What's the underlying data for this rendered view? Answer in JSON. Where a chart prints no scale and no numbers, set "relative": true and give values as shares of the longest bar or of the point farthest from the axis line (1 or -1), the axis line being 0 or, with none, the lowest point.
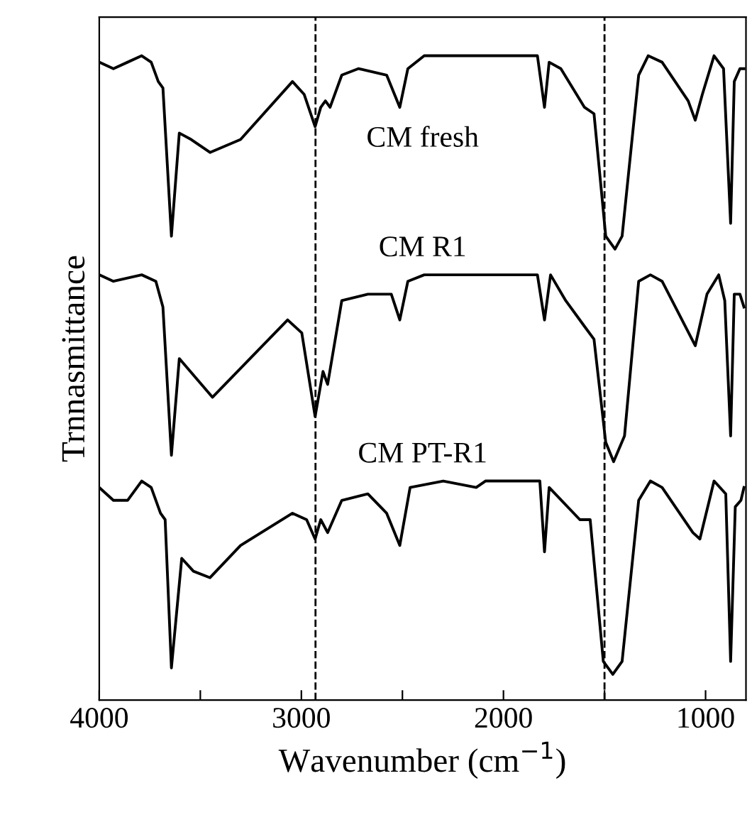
{
  "chart_data": {
    "type": "line",
    "relative": true,
    "xlabel": "Wavenumber (cm$^{−1}$)",
    "ylabel": "Trnnasmittance",
    "xlim": [
      4000,
      800
    ],
    "xticks": [
      4000,
      {
        "value": 3500,
        "label": null
      },
      3000,
      {
        "value": 2500,
        "label": null
      },
      2000,
      {
        "value": 1500,
        "label": null
      },
      1000
    ],
    "tick_labels": "x",
    "grid": false,
    "legend": false,
    "line_style": "solid",
    "marker": "none",
    "ref_lines": [
      {
        "axis": "x",
        "value": 2930,
        "color": "#000000",
        "line_style": "dashed"
      },
      {
        "axis": "x",
        "value": 1500,
        "color": "#000000",
        "line_style": "dashed"
      }
    ],
    "series": [
      {
        "name": "CM fresh",
        "color": "#000000",
        "x": [
          4000,
          3930,
          3860,
          3790,
          3743,
          3708,
          3685,
          3643,
          3604,
          3545,
          3452,
          3301,
          3044,
          2986,
          2932,
          2904,
          2881,
          2858,
          2800,
          2718,
          2578,
          2513,
          2473,
          2392,
          2205,
          1832,
          1797,
          1774,
          1716,
          1599,
          1552,
          1494,
          1448,
          1413,
          1331,
          1284,
          1215,
          1086,
          1051,
          1016,
          958,
          911,
          876,
          858,
          830,
          810
        ],
        "values": [
          0.99,
          0.98,
          0.99,
          1.0,
          0.99,
          0.96,
          0.95,
          0.72,
          0.88,
          0.87,
          0.85,
          0.87,
          0.96,
          0.94,
          0.89,
          0.92,
          0.93,
          0.92,
          0.97,
          0.98,
          0.97,
          0.92,
          0.98,
          1.0,
          1.0,
          1.0,
          0.92,
          0.99,
          0.98,
          0.92,
          0.91,
          0.72,
          0.7,
          0.72,
          0.97,
          1.0,
          0.99,
          0.93,
          0.9,
          0.94,
          1.0,
          0.98,
          0.74,
          0.96,
          0.98,
          0.98
        ]
      },
      {
        "name": "CM R1",
        "color": "#000000",
        "x": [
          4000,
          3930,
          3790,
          3720,
          3685,
          3643,
          3604,
          3440,
          3068,
          2998,
          2932,
          2893,
          2870,
          2800,
          2671,
          2555,
          2513,
          2473,
          2392,
          1832,
          1797,
          1767,
          1692,
          1599,
          1552,
          1494,
          1455,
          1401,
          1331,
          1273,
          1215,
          1051,
          993,
          935,
          905,
          876,
          858,
          830,
          810
        ],
        "values": [
          0.66,
          0.65,
          0.66,
          0.65,
          0.61,
          0.38,
          0.53,
          0.47,
          0.59,
          0.57,
          0.44,
          0.51,
          0.49,
          0.62,
          0.63,
          0.63,
          0.59,
          0.65,
          0.66,
          0.66,
          0.59,
          0.66,
          0.62,
          0.58,
          0.56,
          0.4,
          0.37,
          0.41,
          0.65,
          0.66,
          0.65,
          0.55,
          0.63,
          0.66,
          0.62,
          0.41,
          0.63,
          0.63,
          0.61
        ]
      },
      {
        "name": "CM PT-R1",
        "color": "#000000",
        "x": [
          4000,
          3930,
          3860,
          3790,
          3743,
          3697,
          3674,
          3643,
          3592,
          3534,
          3452,
          3301,
          3044,
          2974,
          2932,
          2904,
          2870,
          2800,
          2671,
          2578,
          2513,
          2462,
          2298,
          2135,
          2089,
          1820,
          1797,
          1774,
          1622,
          1571,
          1506,
          1459,
          1413,
          1331,
          1273,
          1215,
          1063,
          1028,
          958,
          900,
          876,
          853,
          825,
          810
        ],
        "values": [
          0.33,
          0.31,
          0.31,
          0.34,
          0.33,
          0.29,
          0.28,
          0.05,
          0.22,
          0.2,
          0.19,
          0.24,
          0.29,
          0.28,
          0.25,
          0.28,
          0.26,
          0.31,
          0.32,
          0.29,
          0.24,
          0.33,
          0.34,
          0.33,
          0.34,
          0.34,
          0.23,
          0.33,
          0.28,
          0.28,
          0.06,
          0.04,
          0.06,
          0.31,
          0.34,
          0.33,
          0.26,
          0.25,
          0.34,
          0.32,
          0.06,
          0.3,
          0.31,
          0.33
        ]
      }
    ]
  }
}
